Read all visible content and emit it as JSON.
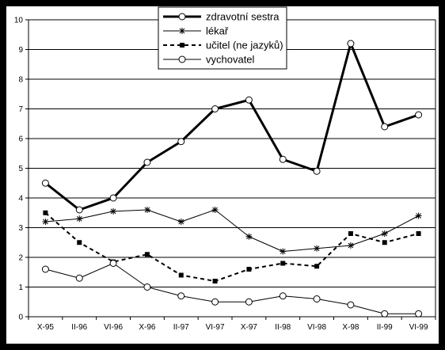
{
  "chart_data": {
    "type": "line",
    "categories": [
      "X-95",
      "II-96",
      "VI-96",
      "X-96",
      "II-97",
      "VI-97",
      "X-97",
      "II-98",
      "VI-98",
      "X-98",
      "II-99",
      "VI-99"
    ],
    "ylim": [
      0,
      10
    ],
    "yticks": [
      "0",
      "1",
      "2",
      "3",
      "4",
      "5",
      "6",
      "7",
      "8",
      "9",
      "10"
    ],
    "grid": true,
    "legend_position": "top-center",
    "series": [
      {
        "name": "zdravotní sestra",
        "values": [
          4.5,
          3.6,
          4.0,
          5.2,
          5.9,
          7.0,
          7.3,
          5.3,
          4.9,
          9.2,
          6.4,
          6.8
        ],
        "color": "#000000",
        "marker": "circle",
        "style": "thick"
      },
      {
        "name": "lékař",
        "values": [
          3.2,
          3.3,
          3.55,
          3.6,
          3.2,
          3.6,
          2.7,
          2.2,
          2.3,
          2.4,
          2.8,
          3.4
        ],
        "color": "#000000",
        "marker": "star",
        "style": "thin"
      },
      {
        "name": "učitel (ne jazyků)",
        "values": [
          3.5,
          2.5,
          1.85,
          2.1,
          1.4,
          1.2,
          1.6,
          1.8,
          1.7,
          2.8,
          2.5,
          2.8
        ],
        "color": "#000000",
        "marker": "square",
        "style": "dashed"
      },
      {
        "name": "vychovatel",
        "values": [
          1.6,
          1.3,
          1.8,
          1.0,
          0.7,
          0.5,
          0.5,
          0.7,
          0.6,
          0.4,
          0.1,
          0.1
        ],
        "color": "#000000",
        "marker": "circle",
        "style": "thin"
      }
    ]
  }
}
